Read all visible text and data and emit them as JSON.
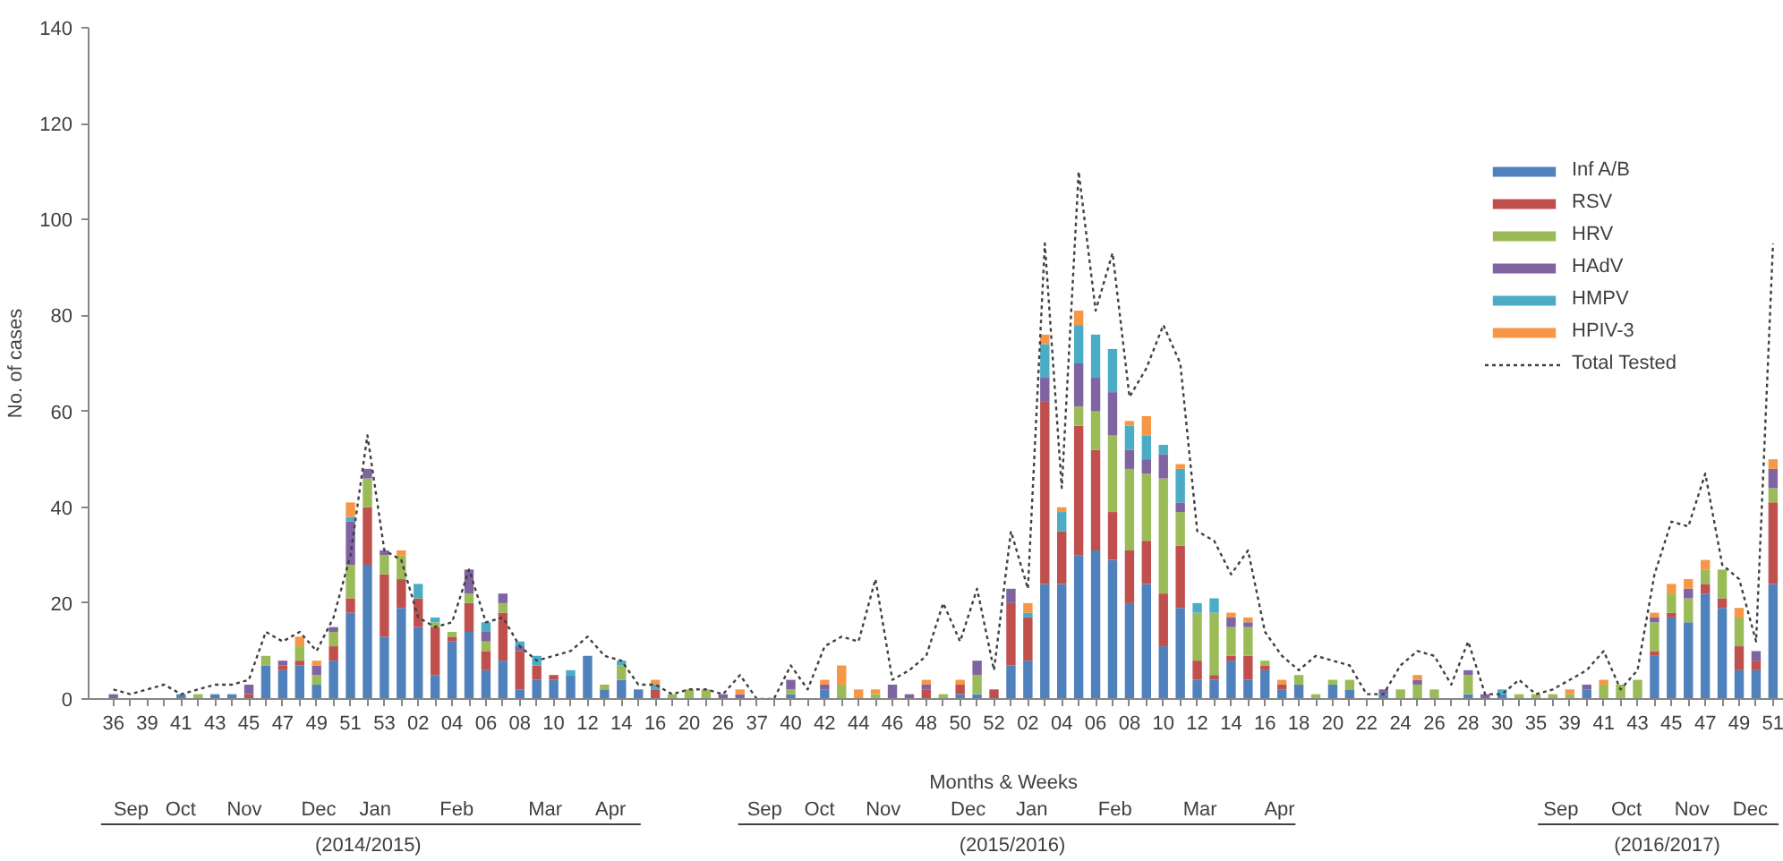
{
  "chart_data": {
    "type": "bar",
    "stacked": true,
    "ylabel": "No. of cases",
    "xlabel": "Months & Weeks",
    "ylim": [
      0,
      140
    ],
    "yticks": [
      0,
      20,
      40,
      60,
      80,
      100,
      120,
      140
    ],
    "grid": false,
    "legend": "top right",
    "categories": [
      "36",
      null,
      "39",
      null,
      "41",
      null,
      "43",
      null,
      "45",
      null,
      "47",
      null,
      "49",
      null,
      "51",
      null,
      "53",
      null,
      "02",
      null,
      "04",
      null,
      "06",
      null,
      "08",
      null,
      "10",
      null,
      "12",
      null,
      "14",
      null,
      "16",
      null,
      "20",
      null,
      "26",
      null,
      "37",
      null,
      "40",
      null,
      "42",
      null,
      "44",
      null,
      "46",
      null,
      "48",
      null,
      "50",
      null,
      "52",
      null,
      "02",
      null,
      "04",
      null,
      "06",
      null,
      "08",
      null,
      "10",
      null,
      "12",
      null,
      "14",
      null,
      "16",
      null,
      "18",
      null,
      "20",
      null,
      "22",
      null,
      "24",
      null,
      "26",
      null,
      "28",
      null,
      "30",
      null,
      "35",
      null,
      "39",
      null,
      "41",
      null,
      "43",
      null,
      "45",
      null,
      "47",
      null,
      "49",
      null,
      "51"
    ],
    "series": [
      {
        "name": "Inf A/B",
        "color": "#4f81bd",
        "values": [
          0,
          0,
          0,
          0,
          1,
          0,
          1,
          1,
          0,
          7,
          6,
          7,
          3,
          8,
          18,
          28,
          13,
          19,
          15,
          5,
          12,
          14,
          6,
          8,
          2,
          4,
          4,
          5,
          9,
          2,
          4,
          2,
          0,
          0,
          0,
          0,
          0,
          0,
          0,
          0,
          1,
          0,
          2,
          0,
          0,
          0,
          0,
          0,
          0,
          0,
          1,
          1,
          0,
          7,
          8,
          24,
          24,
          30,
          31,
          29,
          20,
          24,
          11,
          19,
          4,
          4,
          8,
          4,
          6,
          2,
          3,
          0,
          3,
          2,
          0,
          1,
          0,
          0,
          0,
          0,
          1,
          0,
          1,
          0,
          0,
          0,
          0,
          2,
          0,
          0,
          0,
          9,
          17,
          16,
          22,
          19,
          6,
          6,
          24
        ]
      },
      {
        "name": "RSV",
        "color": "#c0504d",
        "values": [
          0,
          0,
          0,
          0,
          0,
          0,
          0,
          0,
          1,
          0,
          1,
          1,
          0,
          3,
          3,
          12,
          13,
          6,
          6,
          10,
          1,
          6,
          4,
          10,
          8,
          3,
          1,
          0,
          0,
          0,
          0,
          0,
          2,
          0,
          0,
          0,
          0,
          0,
          0,
          0,
          0,
          0,
          0,
          0,
          0,
          0,
          0,
          0,
          2,
          0,
          2,
          0,
          2,
          13,
          9,
          38,
          11,
          27,
          21,
          10,
          11,
          9,
          11,
          13,
          4,
          1,
          1,
          5,
          1,
          1,
          0,
          0,
          0,
          0,
          0,
          0,
          0,
          0,
          0,
          0,
          0,
          0,
          0,
          0,
          0,
          0,
          0,
          0,
          0,
          0,
          0,
          1,
          1,
          0,
          2,
          2,
          5,
          2,
          17
        ]
      },
      {
        "name": "HRV",
        "color": "#9bbb59",
        "values": [
          0,
          0,
          0,
          0,
          0,
          1,
          0,
          0,
          0,
          2,
          0,
          3,
          2,
          3,
          7,
          6,
          4,
          5,
          0,
          1,
          1,
          2,
          2,
          2,
          0,
          0,
          0,
          0,
          0,
          1,
          3,
          0,
          0,
          1,
          2,
          2,
          0,
          0,
          0,
          0,
          1,
          0,
          0,
          3,
          0,
          1,
          0,
          0,
          0,
          1,
          0,
          4,
          0,
          0,
          0,
          0,
          0,
          4,
          8,
          16,
          17,
          14,
          24,
          7,
          10,
          13,
          6,
          6,
          1,
          0,
          2,
          1,
          1,
          2,
          0,
          0,
          2,
          3,
          2,
          0,
          4,
          0,
          0,
          1,
          1,
          1,
          1,
          0,
          3,
          3,
          4,
          6,
          4,
          5,
          3,
          6,
          6,
          0,
          3
        ]
      },
      {
        "name": "HAdV",
        "color": "#8064a2",
        "values": [
          1,
          0,
          0,
          0,
          0,
          0,
          0,
          0,
          2,
          0,
          1,
          0,
          2,
          1,
          9,
          2,
          1,
          0,
          0,
          0,
          0,
          5,
          2,
          2,
          1,
          0,
          0,
          0,
          0,
          0,
          0,
          0,
          0,
          0,
          0,
          0,
          1,
          1,
          0,
          0,
          2,
          0,
          1,
          0,
          0,
          0,
          3,
          1,
          1,
          0,
          0,
          3,
          0,
          3,
          0,
          5,
          0,
          9,
          7,
          9,
          4,
          3,
          5,
          2,
          0,
          0,
          2,
          1,
          0,
          0,
          0,
          0,
          0,
          0,
          0,
          1,
          0,
          1,
          0,
          0,
          1,
          1,
          0,
          0,
          0,
          0,
          0,
          1,
          0,
          0,
          0,
          1,
          0,
          2,
          0,
          0,
          0,
          2,
          4
        ]
      },
      {
        "name": "HMPV",
        "color": "#4bacc6",
        "values": [
          0,
          0,
          0,
          0,
          0,
          0,
          0,
          0,
          0,
          0,
          0,
          0,
          0,
          0,
          1,
          0,
          0,
          0,
          3,
          1,
          0,
          0,
          2,
          0,
          1,
          2,
          0,
          1,
          0,
          0,
          1,
          0,
          1,
          0,
          0,
          0,
          0,
          0,
          0,
          0,
          0,
          0,
          0,
          0,
          0,
          0,
          0,
          0,
          0,
          0,
          0,
          0,
          0,
          0,
          1,
          7,
          4,
          8,
          9,
          9,
          5,
          5,
          2,
          7,
          2,
          3,
          0,
          0,
          0,
          0,
          0,
          0,
          0,
          0,
          0,
          0,
          0,
          0,
          0,
          0,
          0,
          0,
          1,
          0,
          0,
          0,
          0,
          0,
          0,
          0,
          0,
          0,
          0,
          0,
          0,
          0,
          0,
          0,
          0
        ]
      },
      {
        "name": "HPIV-3",
        "color": "#f79646",
        "values": [
          0,
          0,
          0,
          0,
          0,
          0,
          0,
          0,
          0,
          0,
          0,
          2,
          1,
          0,
          3,
          0,
          0,
          1,
          0,
          0,
          0,
          0,
          0,
          0,
          0,
          0,
          0,
          0,
          0,
          0,
          0,
          0,
          1,
          0,
          0,
          0,
          0,
          1,
          0,
          0,
          0,
          0,
          1,
          4,
          2,
          1,
          0,
          0,
          1,
          0,
          1,
          0,
          0,
          0,
          2,
          2,
          1,
          3,
          0,
          0,
          1,
          4,
          0,
          1,
          0,
          0,
          1,
          1,
          0,
          1,
          0,
          0,
          0,
          0,
          0,
          0,
          0,
          1,
          0,
          0,
          0,
          0,
          0,
          0,
          0,
          0,
          1,
          0,
          1,
          0,
          0,
          1,
          2,
          2,
          2,
          0,
          2,
          0,
          2
        ]
      },
      {
        "name": "Total Tested",
        "type": "line",
        "color": "#404040",
        "line_style": "dashed",
        "values": [
          2,
          1,
          2,
          3,
          1,
          2,
          3,
          3,
          4,
          14,
          12,
          14,
          10,
          17,
          30,
          55,
          31,
          29,
          17,
          15,
          16,
          27,
          16,
          17,
          11,
          8,
          9,
          10,
          13,
          9,
          8,
          3,
          3,
          1,
          2,
          2,
          1,
          5,
          0,
          0,
          7,
          2,
          11,
          13,
          12,
          25,
          4,
          6,
          9,
          20,
          12,
          23,
          6,
          35,
          23,
          95,
          44,
          110,
          81,
          93,
          63,
          69,
          78,
          70,
          35,
          33,
          26,
          31,
          14,
          9,
          6,
          9,
          8,
          7,
          1,
          1,
          7,
          10,
          9,
          3,
          12,
          1,
          1,
          4,
          1,
          2,
          4,
          6,
          10,
          2,
          6,
          26,
          37,
          36,
          47,
          28,
          25,
          12,
          95
        ]
      }
    ],
    "annotations": [
      "Sep",
      "Oct",
      "Nov",
      "Dec",
      "Jan",
      "Feb",
      "Mar",
      "Apr",
      "(2014/2015)",
      "Sep",
      "Oct",
      "Nov",
      "Dec",
      "Jan",
      "Feb",
      "Mar",
      "Apr",
      "(2015/2016)",
      "Sep",
      "Oct",
      "Nov",
      "Dec",
      "(2016/2017)"
    ]
  }
}
